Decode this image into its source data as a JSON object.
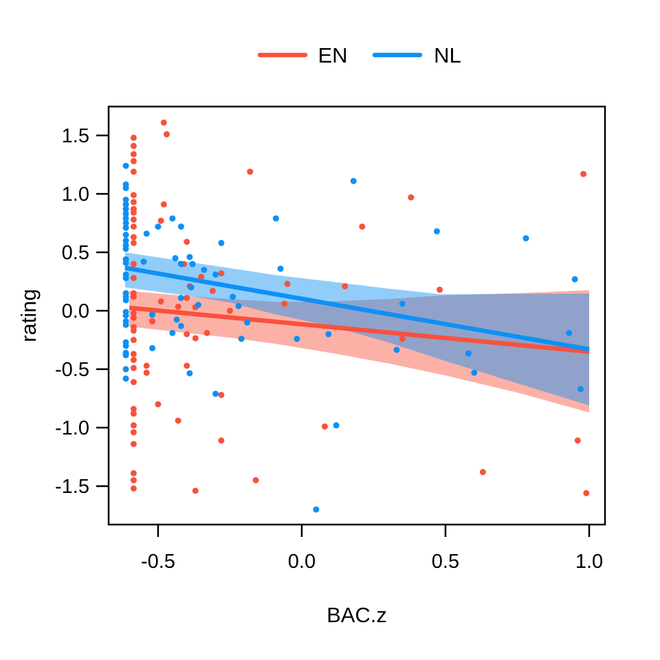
{
  "figure": {
    "background": "#ffffff",
    "legend": {
      "position": "top",
      "items": [
        {
          "label": "EN",
          "color": "#F8513C"
        },
        {
          "label": "NL",
          "color": "#0E90F5"
        }
      ]
    }
  },
  "chart_data": {
    "type": "scatter",
    "title": "",
    "xlabel": "BAC.z",
    "ylabel": "rating",
    "x_ticks": [
      -0.5,
      0.0,
      0.5,
      1.0
    ],
    "y_ticks": [
      -1.5,
      -1.0,
      -0.5,
      0.0,
      0.5,
      1.0,
      1.5
    ],
    "xlim": [
      -0.672,
      1.055
    ],
    "ylim": [
      -1.829,
      1.747
    ],
    "grid": false,
    "band_opacity": 0.45,
    "series": [
      {
        "name": "EN",
        "color": "#F8513C",
        "regression_line": {
          "x": [
            -0.6,
            1.0
          ],
          "y": [
            0.025,
            -0.35
          ]
        },
        "ci_band": {
          "x": [
            -0.6,
            -0.4,
            -0.25,
            -0.093,
            0.1,
            0.3,
            0.488,
            0.75,
            1.0
          ],
          "top": [
            0.17,
            0.125,
            0.1,
            0.076,
            0.08,
            0.1,
            0.13,
            0.15,
            0.176
          ],
          "bottom": [
            -0.135,
            -0.19,
            -0.23,
            -0.282,
            -0.36,
            -0.45,
            -0.547,
            -0.7,
            -0.87
          ]
        },
        "points": [
          [
            -0.585,
            1.48
          ],
          [
            -0.585,
            1.41
          ],
          [
            -0.585,
            1.34
          ],
          [
            -0.585,
            1.28
          ],
          [
            -0.585,
            1.19
          ],
          [
            -0.585,
            0.99
          ],
          [
            -0.585,
            0.93
          ],
          [
            -0.585,
            0.87
          ],
          [
            -0.585,
            0.84
          ],
          [
            -0.585,
            0.78
          ],
          [
            -0.585,
            0.72
          ],
          [
            -0.585,
            0.63
          ],
          [
            -0.585,
            0.58
          ],
          [
            -0.585,
            0.4
          ],
          [
            -0.585,
            0.28
          ],
          [
            -0.585,
            0.15
          ],
          [
            -0.585,
            0.12
          ],
          [
            -0.585,
            -0.02
          ],
          [
            -0.585,
            -0.06
          ],
          [
            -0.585,
            -0.14
          ],
          [
            -0.585,
            -0.17
          ],
          [
            -0.585,
            -0.25
          ],
          [
            -0.585,
            -0.37
          ],
          [
            -0.585,
            -0.42
          ],
          [
            -0.585,
            -0.49
          ],
          [
            -0.585,
            -0.61
          ],
          [
            -0.585,
            -0.84
          ],
          [
            -0.585,
            -0.88
          ],
          [
            -0.585,
            -0.98
          ],
          [
            -0.585,
            -1.04
          ],
          [
            -0.585,
            -1.14
          ],
          [
            -0.585,
            -1.39
          ],
          [
            -0.585,
            -1.45
          ],
          [
            -0.585,
            -1.52
          ],
          [
            -0.48,
            1.61
          ],
          [
            -0.47,
            1.51
          ],
          [
            -0.18,
            1.19
          ],
          [
            0.98,
            1.17
          ],
          [
            0.38,
            0.97
          ],
          [
            -0.48,
            0.91
          ],
          [
            -0.49,
            0.77
          ],
          [
            0.21,
            0.72
          ],
          [
            -0.4,
            0.59
          ],
          [
            -0.41,
            0.4
          ],
          [
            -0.35,
            0.29
          ],
          [
            -0.28,
            0.32
          ],
          [
            -0.39,
            0.21
          ],
          [
            -0.31,
            0.17
          ],
          [
            -0.05,
            0.23
          ],
          [
            0.15,
            0.21
          ],
          [
            0.48,
            0.18
          ],
          [
            -0.49,
            0.08
          ],
          [
            -0.4,
            0.11
          ],
          [
            -0.43,
            0.035
          ],
          [
            -0.37,
            0.03
          ],
          [
            -0.25,
            0.0
          ],
          [
            -0.06,
            0.06
          ],
          [
            -0.52,
            -0.03
          ],
          [
            -0.52,
            -0.09
          ],
          [
            -0.4,
            -0.2
          ],
          [
            -0.37,
            -0.235
          ],
          [
            -0.33,
            -0.19
          ],
          [
            -0.21,
            -0.24
          ],
          [
            0.35,
            -0.24
          ],
          [
            -0.54,
            -0.47
          ],
          [
            -0.4,
            -0.47
          ],
          [
            -0.54,
            -0.53
          ],
          [
            -0.28,
            -0.72
          ],
          [
            -0.5,
            -0.8
          ],
          [
            -0.43,
            -0.94
          ],
          [
            0.08,
            -0.99
          ],
          [
            -0.28,
            -1.11
          ],
          [
            0.96,
            -1.11
          ],
          [
            0.63,
            -1.38
          ],
          [
            -0.16,
            -1.45
          ],
          [
            -0.37,
            -1.54
          ],
          [
            0.99,
            -1.56
          ]
        ]
      },
      {
        "name": "NL",
        "color": "#0E90F5",
        "regression_line": {
          "x": [
            -0.615,
            1.0
          ],
          "y": [
            0.368,
            -0.33
          ]
        },
        "ci_band": {
          "x": [
            -0.615,
            -0.4,
            -0.25,
            -0.093,
            0.1,
            0.3,
            0.488,
            0.75,
            1.0
          ],
          "top": [
            0.5,
            0.42,
            0.365,
            0.306,
            0.25,
            0.19,
            0.141,
            0.145,
            0.147
          ],
          "bottom": [
            0.2,
            0.13,
            0.07,
            -0.03,
            -0.13,
            -0.27,
            -0.42,
            -0.62,
            -0.81
          ]
        },
        "points": [
          [
            -0.612,
            1.24
          ],
          [
            -0.612,
            1.08
          ],
          [
            -0.612,
            1.05
          ],
          [
            -0.612,
            0.95
          ],
          [
            -0.612,
            0.91
          ],
          [
            -0.612,
            0.87
          ],
          [
            -0.612,
            0.83
          ],
          [
            -0.612,
            0.79
          ],
          [
            -0.612,
            0.75
          ],
          [
            -0.612,
            0.71
          ],
          [
            -0.612,
            0.65
          ],
          [
            -0.612,
            0.6
          ],
          [
            -0.612,
            0.56
          ],
          [
            -0.612,
            0.53
          ],
          [
            -0.612,
            0.44
          ],
          [
            -0.612,
            0.41
          ],
          [
            -0.612,
            0.31
          ],
          [
            -0.612,
            0.28
          ],
          [
            -0.612,
            0.15
          ],
          [
            -0.612,
            0.12
          ],
          [
            -0.612,
            0.09
          ],
          [
            -0.612,
            -0.01
          ],
          [
            -0.612,
            -0.04
          ],
          [
            -0.612,
            -0.09
          ],
          [
            -0.612,
            -0.12
          ],
          [
            -0.612,
            -0.27
          ],
          [
            -0.612,
            -0.3
          ],
          [
            -0.612,
            -0.36
          ],
          [
            -0.612,
            -0.38
          ],
          [
            -0.612,
            -0.5
          ],
          [
            -0.612,
            -0.58
          ],
          [
            0.18,
            1.11
          ],
          [
            -0.09,
            0.79
          ],
          [
            0.47,
            0.68
          ],
          [
            0.78,
            0.62
          ],
          [
            -0.28,
            0.58
          ],
          [
            -0.45,
            0.79
          ],
          [
            -0.5,
            0.72
          ],
          [
            -0.42,
            0.72
          ],
          [
            -0.54,
            0.66
          ],
          [
            -0.55,
            0.42
          ],
          [
            -0.44,
            0.45
          ],
          [
            -0.42,
            0.4
          ],
          [
            -0.38,
            0.4
          ],
          [
            -0.34,
            0.35
          ],
          [
            -0.39,
            0.46
          ],
          [
            -0.3,
            0.31
          ],
          [
            -0.074,
            0.36
          ],
          [
            0.95,
            0.27
          ],
          [
            -0.385,
            0.2
          ],
          [
            -0.24,
            0.12
          ],
          [
            -0.42,
            0.11
          ],
          [
            -0.36,
            0.05
          ],
          [
            -0.22,
            0.04
          ],
          [
            0.35,
            0.06
          ],
          [
            -0.52,
            -0.035
          ],
          [
            -0.435,
            -0.076
          ],
          [
            -0.19,
            -0.1
          ],
          [
            -0.42,
            -0.13
          ],
          [
            -0.45,
            -0.19
          ],
          [
            -0.017,
            -0.24
          ],
          [
            -0.21,
            -0.24
          ],
          [
            0.093,
            -0.2
          ],
          [
            0.93,
            -0.19
          ],
          [
            -0.52,
            -0.32
          ],
          [
            0.33,
            -0.335
          ],
          [
            0.58,
            -0.365
          ],
          [
            -0.39,
            -0.535
          ],
          [
            0.6,
            -0.53
          ],
          [
            0.97,
            -0.67
          ],
          [
            -0.3,
            -0.71
          ],
          [
            0.12,
            -0.98
          ],
          [
            0.05,
            -1.7
          ]
        ]
      }
    ]
  }
}
